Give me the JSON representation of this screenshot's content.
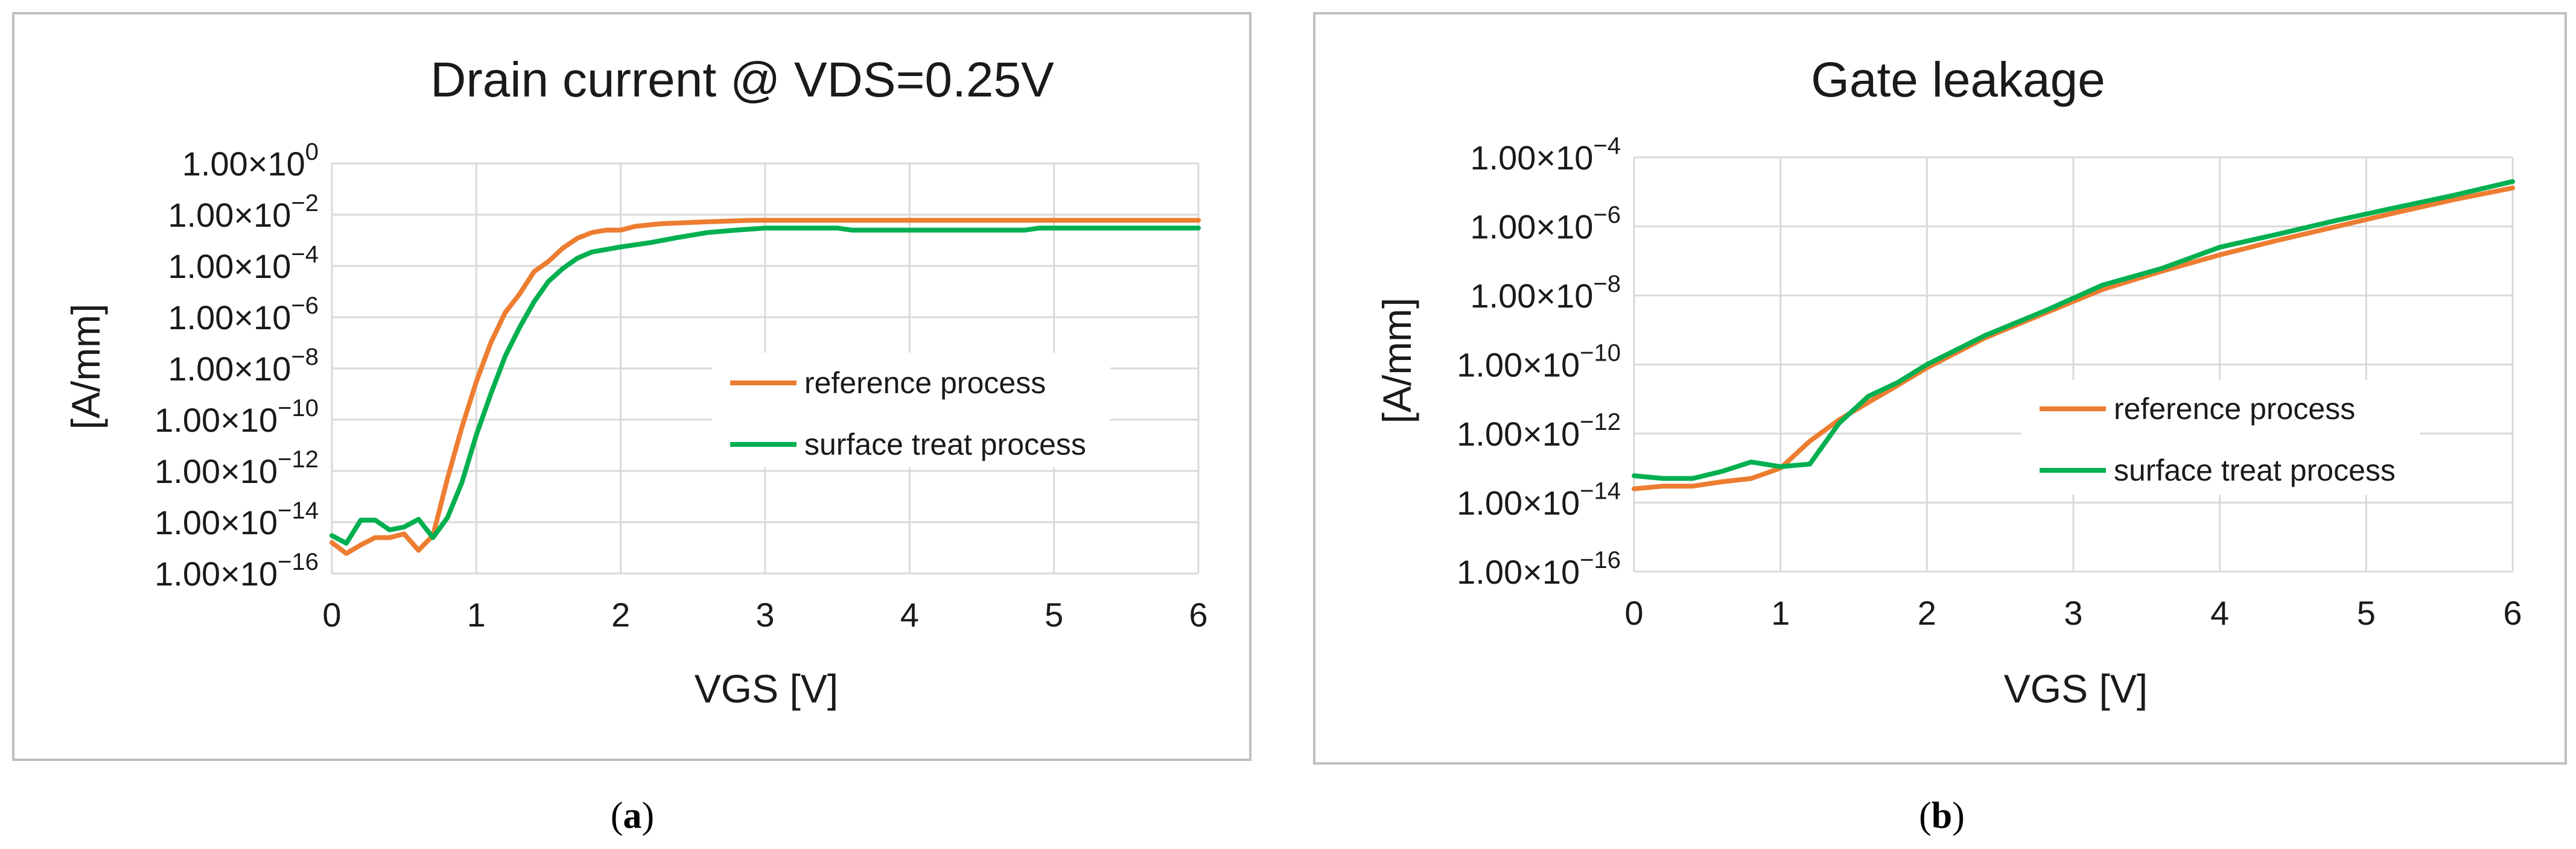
{
  "colors": {
    "reference": "#ED7D31",
    "surface": "#00B050"
  },
  "chart_data": [
    {
      "type": "line",
      "title": "Drain current @ VDS=0.25V",
      "xlabel": "VGS [V]",
      "ylabel": "[A/mm]",
      "xlim": [
        0,
        6
      ],
      "ylim": [
        1e-16,
        1
      ],
      "y_scale": "log",
      "x_ticks": [
        "0",
        "1",
        "2",
        "3",
        "4",
        "5",
        "6"
      ],
      "y_ticks": [
        {
          "base": "1.00×10",
          "exp": "0"
        },
        {
          "base": "1.00×10",
          "exp": "−2"
        },
        {
          "base": "1.00×10",
          "exp": "−4"
        },
        {
          "base": "1.00×10",
          "exp": "−6"
        },
        {
          "base": "1.00×10",
          "exp": "−8"
        },
        {
          "base": "1.00×10",
          "exp": "−10"
        },
        {
          "base": "1.00×10",
          "exp": "−12"
        },
        {
          "base": "1.00×10",
          "exp": "−14"
        },
        {
          "base": "1.00×10",
          "exp": "−16"
        }
      ],
      "grid": true,
      "legend_position": "center-right",
      "caption": "a",
      "series": [
        {
          "name": "reference process",
          "x": [
            0,
            0.1,
            0.2,
            0.3,
            0.4,
            0.5,
            0.6,
            0.7,
            0.8,
            0.9,
            1.0,
            1.1,
            1.2,
            1.3,
            1.4,
            1.5,
            1.6,
            1.7,
            1.8,
            1.9,
            2.0,
            2.1,
            2.2,
            2.3,
            2.5,
            2.7,
            2.9,
            3.2,
            3.5,
            4,
            5,
            6
          ],
          "y": [
            1.6e-15,
            6e-16,
            1.3e-15,
            2.5e-15,
            2.5e-15,
            3.5e-15,
            8e-16,
            3e-15,
            5e-13,
            5e-11,
            3e-09,
            1e-07,
            1.5e-06,
            8e-06,
            6e-05,
            0.00015,
            0.0005,
            0.0012,
            0.002,
            0.0025,
            0.0025,
            0.0035,
            0.004,
            0.0045,
            0.005,
            0.0055,
            0.006,
            0.006,
            0.006,
            0.006,
            0.006,
            0.006
          ]
        },
        {
          "name": "surface treat process",
          "x": [
            0,
            0.1,
            0.2,
            0.3,
            0.4,
            0.5,
            0.6,
            0.7,
            0.8,
            0.9,
            1.0,
            1.1,
            1.2,
            1.3,
            1.4,
            1.5,
            1.6,
            1.7,
            1.8,
            2.0,
            2.2,
            2.4,
            2.6,
            2.8,
            3.0,
            3.5,
            3.6,
            4.8,
            4.9,
            6
          ],
          "y": [
            3e-15,
            1.5e-15,
            1.2e-14,
            1.2e-14,
            5e-15,
            6.5e-15,
            1.3e-14,
            2.5e-15,
            1.5e-14,
            3.5e-13,
            2.5e-11,
            1e-09,
            3e-08,
            4e-07,
            4e-06,
            2.5e-05,
            8e-05,
            0.0002,
            0.00035,
            0.00055,
            0.0008,
            0.0013,
            0.002,
            0.0025,
            0.003,
            0.003,
            0.0025,
            0.0025,
            0.003,
            0.003
          ]
        }
      ]
    },
    {
      "type": "line",
      "title": "Gate leakage",
      "xlabel": "VGS [V]",
      "ylabel": "[A/mm]",
      "xlim": [
        0,
        6
      ],
      "ylim": [
        1e-16,
        0.0001
      ],
      "y_scale": "log",
      "x_ticks": [
        "0",
        "1",
        "2",
        "3",
        "4",
        "5",
        "6"
      ],
      "y_ticks": [
        {
          "base": "1.00×10",
          "exp": "−4"
        },
        {
          "base": "1.00×10",
          "exp": "−6"
        },
        {
          "base": "1.00×10",
          "exp": "−8"
        },
        {
          "base": "1.00×10",
          "exp": "−10"
        },
        {
          "base": "1.00×10",
          "exp": "−12"
        },
        {
          "base": "1.00×10",
          "exp": "−14"
        },
        {
          "base": "1.00×10",
          "exp": "−16"
        }
      ],
      "grid": true,
      "legend_position": "center-right",
      "caption": "b",
      "series": [
        {
          "name": "reference process",
          "x": [
            0,
            0.2,
            0.4,
            0.6,
            0.8,
            1.0,
            1.2,
            1.4,
            1.6,
            1.8,
            2.0,
            2.4,
            2.8,
            3.2,
            3.6,
            4.0,
            4.4,
            4.8,
            5.2,
            5.6,
            6.0
          ],
          "y": [
            2.5e-14,
            3e-14,
            3e-14,
            4e-14,
            5e-14,
            1e-13,
            6e-13,
            2.5e-12,
            8e-12,
            2.5e-11,
            8e-11,
            6e-10,
            3e-09,
            1.5e-08,
            5e-08,
            1.5e-07,
            4e-07,
            1e-06,
            2.5e-06,
            6e-06,
            1.3e-05
          ]
        },
        {
          "name": "surface treat process",
          "x": [
            0,
            0.2,
            0.4,
            0.6,
            0.8,
            1.0,
            1.2,
            1.4,
            1.6,
            1.8,
            2.0,
            2.4,
            2.8,
            3.2,
            3.6,
            4.0,
            4.4,
            4.8,
            5.2,
            5.6,
            6.0
          ],
          "y": [
            6e-14,
            5e-14,
            5e-14,
            8e-14,
            1.5e-13,
            1.1e-13,
            1.3e-13,
            2e-12,
            1.2e-11,
            3e-11,
            1e-10,
            7e-10,
            3.5e-09,
            2e-08,
            6e-08,
            2.5e-07,
            6e-07,
            1.5e-06,
            3.5e-06,
            8e-06,
            2e-05
          ]
        }
      ]
    }
  ]
}
